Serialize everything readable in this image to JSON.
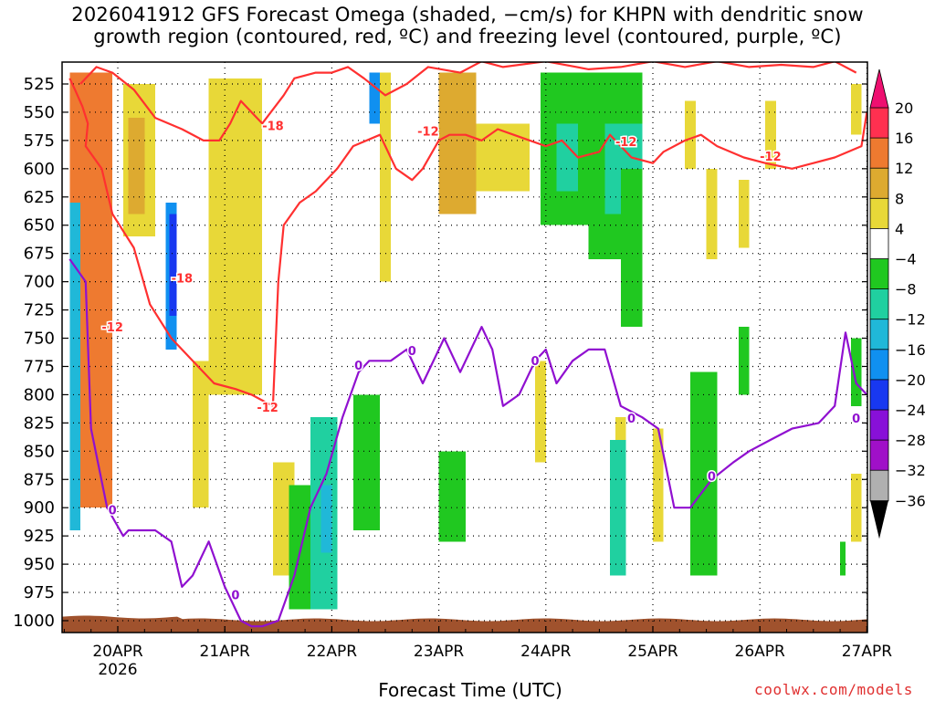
{
  "chart_data": {
    "type": "heatmap",
    "title_line1": "2026041912 GFS Forecast Omega (shaded, −cm/s) for KHPN with dendritic snow",
    "title_line2": "growth region (contoured, red, ºC) and freezing level (contoured, purple, ºC)",
    "xlabel": "Forecast Time (UTC)",
    "credit": "coolwx.com/models",
    "x_ticks": [
      "20APR",
      "21APR",
      "22APR",
      "23APR",
      "24APR",
      "25APR",
      "26APR",
      "27APR"
    ],
    "x_year": "2026",
    "y_ticks": [
      "525",
      "550",
      "575",
      "600",
      "625",
      "650",
      "675",
      "700",
      "725",
      "750",
      "775",
      "800",
      "825",
      "850",
      "875",
      "900",
      "925",
      "950",
      "975",
      "1000"
    ],
    "ylim": [
      1010,
      510
    ],
    "xlim_days": [
      -0.5,
      7.0
    ],
    "colorbar": {
      "labels": [
        "20",
        "16",
        "12",
        "8",
        "4",
        "−4",
        "−8",
        "−12",
        "−16",
        "−20",
        "−24",
        "−28",
        "−32",
        "−36"
      ],
      "colors": [
        "#ff3050",
        "#ee7a30",
        "#ddaa30",
        "#e8d838",
        "#ffffff",
        "#20c820",
        "#20d0a0",
        "#20b8d8",
        "#1090f0",
        "#1838f0",
        "#8810d8",
        "#a010c8",
        "#b0b0b0"
      ],
      "cap_top": "#ee1070",
      "cap_bottom": "#000000"
    },
    "shading": [
      {
        "x0": -0.45,
        "x1": -0.05,
        "p0": 515,
        "p1": 900,
        "v": 12
      },
      {
        "x0": -0.35,
        "x1": -0.15,
        "p0": 540,
        "p1": 780,
        "v": 15
      },
      {
        "x0": 0.05,
        "x1": 0.35,
        "p0": 525,
        "p1": 660,
        "v": 6
      },
      {
        "x0": 0.1,
        "x1": 0.25,
        "p0": 555,
        "p1": 640,
        "v": 10
      },
      {
        "x0": 0.85,
        "x1": 1.35,
        "p0": 520,
        "p1": 800,
        "v": 6
      },
      {
        "x0": 1.45,
        "x1": 1.65,
        "p0": 860,
        "p1": 960,
        "v": 5
      },
      {
        "x0": 2.45,
        "x1": 2.55,
        "p0": 515,
        "p1": 700,
        "v": 6
      },
      {
        "x0": 3.0,
        "x1": 3.35,
        "p0": 515,
        "p1": 640,
        "v": 9
      },
      {
        "x0": 3.35,
        "x1": 3.85,
        "p0": 560,
        "p1": 620,
        "v": 6
      },
      {
        "x0": 5.3,
        "x1": 5.4,
        "p0": 540,
        "p1": 600,
        "v": 6
      },
      {
        "x0": 5.8,
        "x1": 5.9,
        "p0": 610,
        "p1": 670,
        "v": 6
      },
      {
        "x0": 6.05,
        "x1": 6.15,
        "p0": 540,
        "p1": 600,
        "v": 6
      },
      {
        "x0": 6.85,
        "x1": 6.95,
        "p0": 525,
        "p1": 570,
        "v": 5
      },
      {
        "x0": 5.5,
        "x1": 5.6,
        "p0": 600,
        "p1": 680,
        "v": 6
      },
      {
        "x0": 4.65,
        "x1": 4.75,
        "p0": 820,
        "p1": 940,
        "v": 6
      },
      {
        "x0": 5.0,
        "x1": 5.1,
        "p0": 830,
        "p1": 930,
        "v": 6
      },
      {
        "x0": 6.85,
        "x1": 6.95,
        "p0": 870,
        "p1": 930,
        "v": 6
      },
      {
        "x0": 3.9,
        "x1": 4.0,
        "p0": 770,
        "p1": 860,
        "v": 6
      },
      {
        "x0": 0.7,
        "x1": 0.85,
        "p0": 770,
        "p1": 900,
        "v": 6
      },
      {
        "x0": -0.45,
        "x1": -0.35,
        "p0": 630,
        "p1": 920,
        "v": -16
      },
      {
        "x0": 0.45,
        "x1": 0.55,
        "p0": 630,
        "p1": 760,
        "v": -18
      },
      {
        "x0": 0.48,
        "x1": 0.55,
        "p0": 640,
        "p1": 730,
        "v": -22
      },
      {
        "x0": 2.35,
        "x1": 2.45,
        "p0": 515,
        "p1": 560,
        "v": -20
      },
      {
        "x0": 2.2,
        "x1": 2.45,
        "p0": 800,
        "p1": 920,
        "v": -8
      },
      {
        "x0": 1.6,
        "x1": 1.85,
        "p0": 880,
        "p1": 990,
        "v": -6
      },
      {
        "x0": 1.8,
        "x1": 2.05,
        "p0": 820,
        "p1": 990,
        "v": -10
      },
      {
        "x0": 1.9,
        "x1": 2.0,
        "p0": 880,
        "p1": 940,
        "v": -14
      },
      {
        "x0": 3.0,
        "x1": 3.25,
        "p0": 850,
        "p1": 930,
        "v": -7
      },
      {
        "x0": 3.95,
        "x1": 4.4,
        "p0": 515,
        "p1": 650,
        "v": -7
      },
      {
        "x0": 4.1,
        "x1": 4.3,
        "p0": 560,
        "p1": 620,
        "v": -10
      },
      {
        "x0": 4.4,
        "x1": 4.9,
        "p0": 515,
        "p1": 680,
        "v": -8
      },
      {
        "x0": 4.55,
        "x1": 4.9,
        "p0": 560,
        "p1": 640,
        "v": -11
      },
      {
        "x0": 4.7,
        "x1": 4.9,
        "p0": 600,
        "p1": 740,
        "v": -7
      },
      {
        "x0": 5.35,
        "x1": 5.6,
        "p0": 780,
        "p1": 960,
        "v": -7
      },
      {
        "x0": 5.8,
        "x1": 5.9,
        "p0": 740,
        "p1": 800,
        "v": -7
      },
      {
        "x0": 6.85,
        "x1": 6.95,
        "p0": 750,
        "p1": 810,
        "v": -7
      },
      {
        "x0": 6.75,
        "x1": 6.8,
        "p0": 930,
        "p1": 960,
        "v": -7
      },
      {
        "x0": 4.6,
        "x1": 4.75,
        "p0": 840,
        "p1": 960,
        "v": -12
      }
    ],
    "series": [
      {
        "name": "-12 C (lower branch)",
        "color": "#ff3030",
        "x": [
          -0.45,
          -0.4,
          -0.33,
          -0.28,
          -0.3,
          -0.15,
          -0.05,
          0.15,
          0.3,
          0.5,
          0.6,
          0.7,
          0.9,
          1.1,
          1.25,
          1.35,
          1.45
        ],
        "p": [
          520,
          530,
          545,
          560,
          580,
          600,
          640,
          670,
          720,
          750,
          760,
          770,
          790,
          795,
          800,
          805,
          810
        ]
      },
      {
        "name": "-12 C (upper branch)",
        "color": "#ff3030",
        "x": [
          1.45,
          1.5,
          1.55,
          1.7,
          1.85,
          2.05,
          2.2,
          2.45,
          2.6,
          2.75,
          2.85,
          3.0,
          3.1,
          3.25,
          3.4,
          3.55,
          3.7,
          3.85,
          4.0,
          4.15,
          4.3,
          4.5,
          4.6,
          4.8,
          5.0,
          5.1,
          5.3,
          5.45,
          5.6,
          5.85,
          6.05,
          6.3,
          6.5,
          6.7,
          6.95,
          7.0
        ],
        "p": [
          810,
          700,
          650,
          630,
          620,
          600,
          580,
          570,
          600,
          610,
          600,
          575,
          570,
          570,
          575,
          565,
          570,
          575,
          580,
          575,
          590,
          585,
          570,
          590,
          595,
          585,
          575,
          570,
          580,
          590,
          595,
          600,
          595,
          590,
          580,
          550
        ]
      },
      {
        "name": "-18 C",
        "color": "#ff3030",
        "x": [
          -0.35,
          -0.2,
          -0.05,
          0.15,
          0.35,
          0.6,
          0.8,
          0.95,
          1.05,
          1.15,
          1.2,
          1.35,
          1.55,
          1.65,
          1.85,
          2.0,
          2.15,
          2.3,
          2.5,
          2.7,
          2.9,
          3.2,
          3.4,
          3.6,
          4.0,
          4.4,
          4.7,
          5.0,
          5.3,
          5.6,
          5.9,
          6.2,
          6.5,
          6.7,
          6.9
        ],
        "p": [
          525,
          510,
          515,
          530,
          555,
          565,
          575,
          575,
          560,
          540,
          545,
          560,
          535,
          520,
          515,
          515,
          510,
          520,
          535,
          525,
          510,
          515,
          505,
          510,
          505,
          512,
          510,
          505,
          510,
          505,
          510,
          508,
          510,
          505,
          515
        ]
      },
      {
        "name": "0 C freezing level",
        "color": "#9010d0",
        "x": [
          -0.45,
          -0.3,
          -0.25,
          -0.1,
          0.05,
          0.1,
          0.2,
          0.35,
          0.5,
          0.6,
          0.7,
          0.85,
          1.0,
          1.15,
          1.25,
          1.35,
          1.5,
          1.65,
          1.8,
          1.95,
          2.1,
          2.25,
          2.35,
          2.55,
          2.7,
          2.85,
          3.05,
          3.2,
          3.4,
          3.5,
          3.6,
          3.75,
          3.9,
          4.0,
          4.1,
          4.25,
          4.4,
          4.55,
          4.7,
          4.8,
          4.9,
          5.05,
          5.2,
          5.35,
          5.55,
          5.75,
          5.9,
          6.1,
          6.3,
          6.55,
          6.7,
          6.8,
          6.9,
          7.0
        ],
        "p": [
          680,
          700,
          830,
          900,
          925,
          920,
          920,
          920,
          930,
          970,
          960,
          930,
          970,
          1000,
          1005,
          1005,
          1000,
          960,
          900,
          870,
          820,
          780,
          770,
          770,
          760,
          790,
          750,
          780,
          740,
          760,
          810,
          800,
          770,
          760,
          790,
          770,
          760,
          760,
          810,
          815,
          820,
          830,
          900,
          900,
          875,
          860,
          850,
          840,
          830,
          825,
          810,
          745,
          790,
          800
        ]
      }
    ],
    "contour_labels": [
      {
        "text": "-18",
        "day": 1.45,
        "p": 563
      },
      {
        "text": "-18",
        "day": 0.6,
        "p": 698
      },
      {
        "text": "-12",
        "day": -0.05,
        "p": 741
      },
      {
        "text": "-12",
        "day": 1.4,
        "p": 812
      },
      {
        "text": "-12",
        "day": 2.9,
        "p": 568
      },
      {
        "text": "-12",
        "day": 4.75,
        "p": 577
      },
      {
        "text": "-12",
        "day": 6.1,
        "p": 590
      },
      {
        "text": "0",
        "day": -0.05,
        "p": 903
      },
      {
        "text": "0",
        "day": 1.1,
        "p": 978
      },
      {
        "text": "0",
        "day": 2.25,
        "p": 775
      },
      {
        "text": "0",
        "day": 2.75,
        "p": 762
      },
      {
        "text": "0",
        "day": 3.9,
        "p": 771
      },
      {
        "text": "0",
        "day": 4.8,
        "p": 822
      },
      {
        "text": "0",
        "day": 5.55,
        "p": 873
      },
      {
        "text": "0",
        "day": 6.9,
        "p": 822
      }
    ]
  }
}
